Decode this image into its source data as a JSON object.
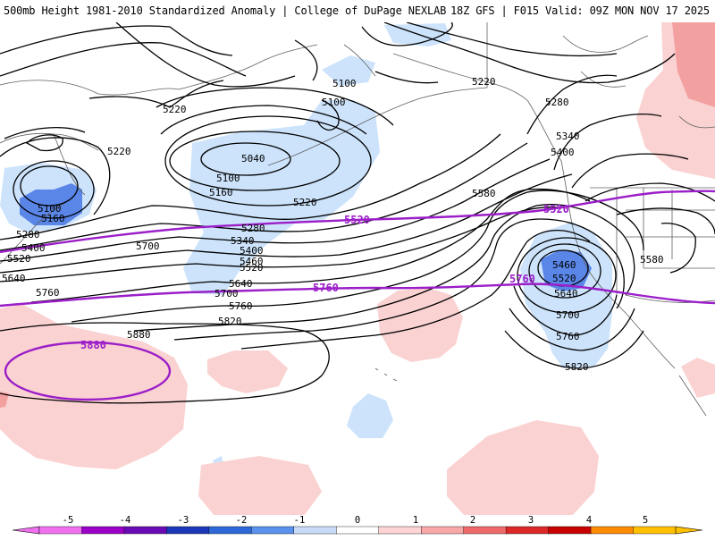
{
  "header": {
    "left_title": "500mb Height 1981-2010 Standardized Anomaly | College of DuPage NEXLAB",
    "right_title": "18Z GFS | F015 Valid: 09Z MON NOV 17 2025"
  },
  "colors": {
    "ocean": "#ffffff",
    "coast": "#606060",
    "contour": "#000000",
    "climo_line": "#9b1ec8",
    "anom_neg1": "#cce3fb",
    "anom_neg2": "#5a86e8",
    "anom_pos1": "#fbd2d2",
    "anom_pos2": "#f2a0a0"
  },
  "height_labels": [
    "5100",
    "5160",
    "5220",
    "5280",
    "5340",
    "5400",
    "5460",
    "5520",
    "5580",
    "5640",
    "5700",
    "5760",
    "5820",
    "5880",
    "5040"
  ],
  "climatology_labels": [
    "5520",
    "5760",
    "5880"
  ],
  "colorbar": {
    "ticks": [
      "-5",
      "-4",
      "-3",
      "-2",
      "-1",
      "0",
      "1",
      "2",
      "3",
      "4",
      "5"
    ],
    "colors": [
      "#f070f0",
      "#9b00c8",
      "#6a0ab4",
      "#1c38b8",
      "#2c68d8",
      "#5a92ee",
      "#c8dcf8",
      "#ffffff",
      "#ffd4d4",
      "#f8a8a8",
      "#ee6a6a",
      "#dc2828",
      "#c80000",
      "#ff8c00",
      "#ffc000"
    ]
  }
}
